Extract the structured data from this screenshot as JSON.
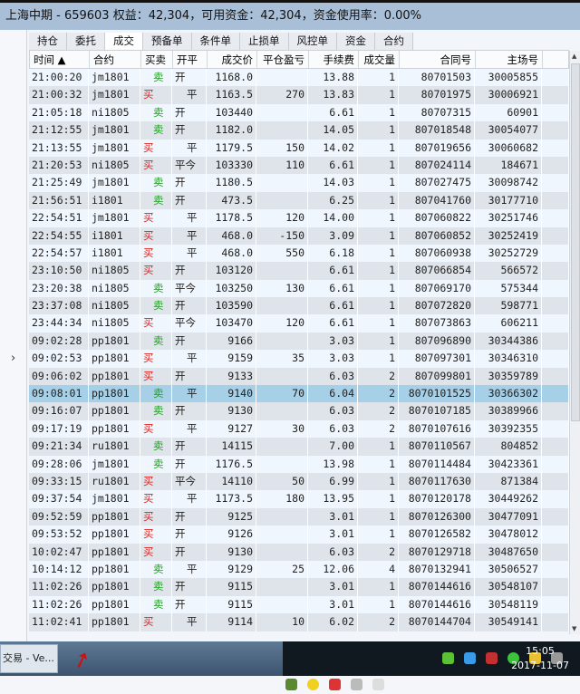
{
  "title": "上海中期 - 659603  权益：42,304，可用资金：42,304，资金使用率：0.00%",
  "tabs": [
    "持仓",
    "委托",
    "成交",
    "预备单",
    "条件单",
    "止损单",
    "风控单",
    "资金",
    "合约"
  ],
  "selected_tab": "成交",
  "columns": [
    "时间 ▲",
    "合约",
    "买卖",
    "开平",
    "成交价",
    "平仓盈亏",
    "手续费",
    "成交量",
    "合同号",
    "主场号"
  ],
  "rows": [
    [
      "21:00:20",
      "jm1801",
      "卖",
      "开",
      "1168.0",
      "",
      "13.88",
      "1",
      "80701503",
      "30005855"
    ],
    [
      "21:00:32",
      "jm1801",
      "买",
      "平",
      "1163.5",
      "270",
      "13.83",
      "1",
      "80701975",
      "30006921"
    ],
    [
      "21:05:18",
      "ni1805",
      "卖",
      "开",
      "103440",
      "",
      "6.61",
      "1",
      "80707315",
      "60901"
    ],
    [
      "21:12:55",
      "jm1801",
      "卖",
      "开",
      "1182.0",
      "",
      "14.05",
      "1",
      "807018548",
      "30054077"
    ],
    [
      "21:13:55",
      "jm1801",
      "买",
      "平",
      "1179.5",
      "150",
      "14.02",
      "1",
      "807019656",
      "30060682"
    ],
    [
      "21:20:53",
      "ni1805",
      "买",
      "平今",
      "103330",
      "110",
      "6.61",
      "1",
      "807024114",
      "184671"
    ],
    [
      "21:25:49",
      "jm1801",
      "卖",
      "开",
      "1180.5",
      "",
      "14.03",
      "1",
      "807027475",
      "30098742"
    ],
    [
      "21:56:51",
      "i1801",
      "卖",
      "开",
      "473.5",
      "",
      "6.25",
      "1",
      "807041760",
      "30177710"
    ],
    [
      "22:54:51",
      "jm1801",
      "买",
      "平",
      "1178.5",
      "120",
      "14.00",
      "1",
      "807060822",
      "30251746"
    ],
    [
      "22:54:55",
      "i1801",
      "买",
      "平",
      "468.0",
      "-150",
      "3.09",
      "1",
      "807060852",
      "30252419"
    ],
    [
      "22:54:57",
      "i1801",
      "买",
      "平",
      "468.0",
      "550",
      "6.18",
      "1",
      "807060938",
      "30252729"
    ],
    [
      "23:10:50",
      "ni1805",
      "买",
      "开",
      "103120",
      "",
      "6.61",
      "1",
      "807066854",
      "566572"
    ],
    [
      "23:20:38",
      "ni1805",
      "卖",
      "平今",
      "103250",
      "130",
      "6.61",
      "1",
      "807069170",
      "575344"
    ],
    [
      "23:37:08",
      "ni1805",
      "卖",
      "开",
      "103590",
      "",
      "6.61",
      "1",
      "807072820",
      "598771"
    ],
    [
      "23:44:34",
      "ni1805",
      "买",
      "平今",
      "103470",
      "120",
      "6.61",
      "1",
      "807073863",
      "606211"
    ],
    [
      "09:02:28",
      "pp1801",
      "卖",
      "开",
      "9166",
      "",
      "3.03",
      "1",
      "807096890",
      "30344386"
    ],
    [
      "09:02:53",
      "pp1801",
      "买",
      "平",
      "9159",
      "35",
      "3.03",
      "1",
      "807097301",
      "30346310"
    ],
    [
      "09:06:02",
      "pp1801",
      "买",
      "开",
      "9133",
      "",
      "6.03",
      "2",
      "807099801",
      "30359789"
    ],
    [
      "09:08:01",
      "pp1801",
      "卖",
      "平",
      "9140",
      "70",
      "6.04",
      "2",
      "8070101525",
      "30366302"
    ],
    [
      "09:16:07",
      "pp1801",
      "卖",
      "开",
      "9130",
      "",
      "6.03",
      "2",
      "8070107185",
      "30389966"
    ],
    [
      "09:17:19",
      "pp1801",
      "买",
      "平",
      "9127",
      "30",
      "6.03",
      "2",
      "8070107616",
      "30392355"
    ],
    [
      "09:21:34",
      "ru1801",
      "卖",
      "开",
      "14115",
      "",
      "7.00",
      "1",
      "8070110567",
      "804852"
    ],
    [
      "09:28:06",
      "jm1801",
      "卖",
      "开",
      "1176.5",
      "",
      "13.98",
      "1",
      "8070114484",
      "30423361"
    ],
    [
      "09:33:15",
      "ru1801",
      "买",
      "平今",
      "14110",
      "50",
      "6.99",
      "1",
      "8070117630",
      "871384"
    ],
    [
      "09:37:54",
      "jm1801",
      "买",
      "平",
      "1173.5",
      "180",
      "13.95",
      "1",
      "8070120178",
      "30449262"
    ],
    [
      "09:52:59",
      "pp1801",
      "买",
      "开",
      "9125",
      "",
      "3.01",
      "1",
      "8070126300",
      "30477091"
    ],
    [
      "09:53:52",
      "pp1801",
      "买",
      "开",
      "9126",
      "",
      "3.01",
      "1",
      "8070126582",
      "30478012"
    ],
    [
      "10:02:47",
      "pp1801",
      "买",
      "开",
      "9130",
      "",
      "6.03",
      "2",
      "8070129718",
      "30487650"
    ],
    [
      "10:14:12",
      "pp1801",
      "卖",
      "平",
      "9129",
      "25",
      "12.06",
      "4",
      "8070132941",
      "30506527"
    ],
    [
      "11:02:26",
      "pp1801",
      "卖",
      "开",
      "9115",
      "",
      "3.01",
      "1",
      "8070144616",
      "30548107"
    ],
    [
      "11:02:26",
      "pp1801",
      "卖",
      "开",
      "9115",
      "",
      "3.01",
      "1",
      "8070144616",
      "30548119"
    ],
    [
      "11:02:41",
      "pp1801",
      "买",
      "平",
      "9114",
      "10",
      "6.02",
      "2",
      "8070144704",
      "30549141"
    ]
  ],
  "selected_row_time": "09:08:01",
  "colors": {
    "buy": "#e0201c",
    "sell": "#1aa31a",
    "selected_row": "#a6cfe8",
    "titlebar": "#a9bfd8"
  },
  "taskbar": {
    "task_label": "交易 - Ve...",
    "time": "15:05",
    "date": "2017-11-07"
  }
}
